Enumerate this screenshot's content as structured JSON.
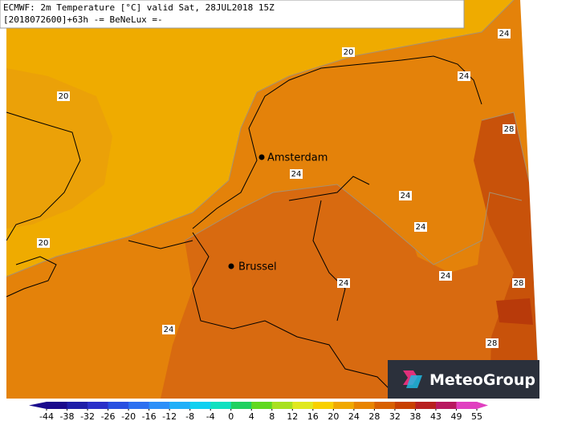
{
  "header": {
    "line1": "ECMWF: 2m Temperature [°C] valid Sat, 28JUL2018 15Z",
    "line2": "[2018072600]+63h -= BeNeLux =-"
  },
  "cities": [
    "Amsterdam",
    "Brussel"
  ],
  "contour_labels": [
    24,
    20,
    24,
    20,
    28,
    24,
    24,
    24,
    20,
    24,
    24,
    28,
    24,
    28
  ],
  "colorbar": {
    "ticks": [
      -44,
      -38,
      -32,
      -26,
      -20,
      -16,
      -12,
      -8,
      -4,
      0,
      4,
      8,
      12,
      16,
      20,
      24,
      28,
      32,
      38,
      43,
      49,
      55
    ],
    "colors": [
      "#1a0a8c",
      "#1e1ea8",
      "#2a30c8",
      "#2850e0",
      "#2c70f0",
      "#2c90f8",
      "#20b0f8",
      "#10d0f0",
      "#10e0c0",
      "#20d060",
      "#60d820",
      "#a8e020",
      "#e0e820",
      "#f8d000",
      "#f0a800",
      "#e88400",
      "#d86000",
      "#c84000",
      "#b82020",
      "#b81860",
      "#e040c0"
    ]
  },
  "logo": "MeteoGroup"
}
